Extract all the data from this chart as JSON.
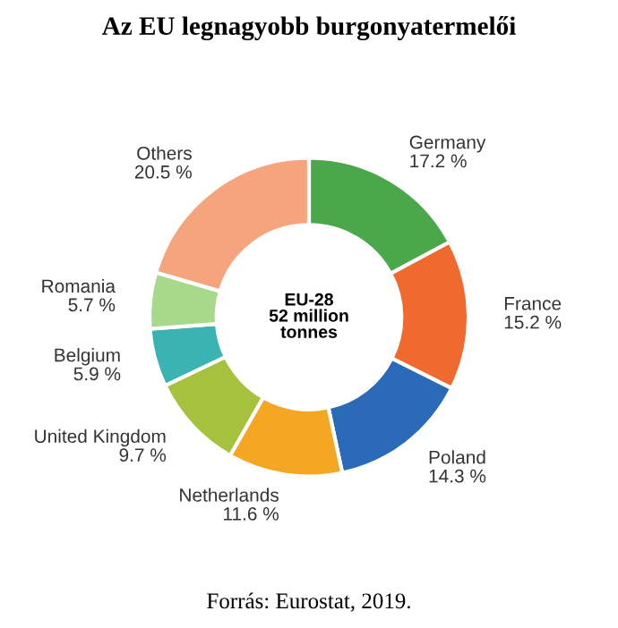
{
  "chart_data": {
    "type": "donut",
    "title": "Az EU legnagyobb burgonyatermelői",
    "categories": [
      "Germany",
      "France",
      "Poland",
      "Netherlands",
      "United Kingdom",
      "Belgium",
      "Romania",
      "Others"
    ],
    "values": [
      17.2,
      15.2,
      14.3,
      11.6,
      9.7,
      5.9,
      5.7,
      20.5
    ],
    "value_labels": [
      "17.2 %",
      "15.2 %",
      "14.3 %",
      "11.6 %",
      "9.7 %",
      "5.9 %",
      "5.7 %",
      "20.5 %"
    ],
    "colors": [
      "#4aa84a",
      "#f06a30",
      "#2a6ab8",
      "#f5a623",
      "#a6c23c",
      "#3bb3b3",
      "#a8d88a",
      "#f6a47e"
    ],
    "annotations": [
      "EU-28\n52 million\ntonnes",
      "Forrás: Eurostat, 2019."
    ],
    "legend": false
  }
}
